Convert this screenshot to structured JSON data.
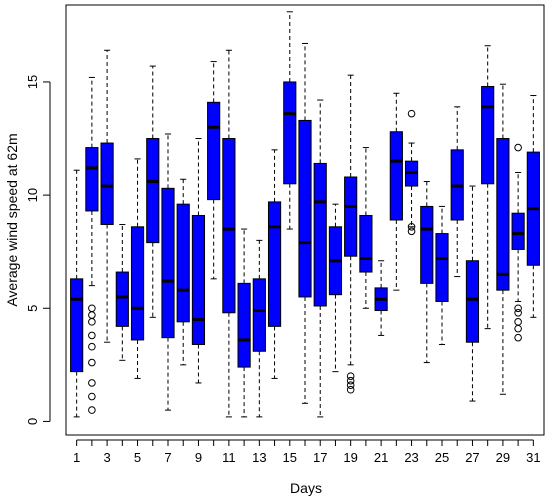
{
  "chart_data": {
    "type": "boxplot",
    "title": "",
    "xlabel": "Days",
    "ylabel": "Average wind speed at 62m",
    "ylim": [
      -0.6,
      18.4
    ],
    "yticks": [
      0,
      5,
      10,
      15
    ],
    "xtick_labels_shown": [
      "1",
      "3",
      "5",
      "7",
      "9",
      "11",
      "13",
      "15",
      "17",
      "19",
      "21",
      "23",
      "25",
      "27",
      "29",
      "31"
    ],
    "colors": {
      "box_fill": "#0000ff",
      "median": "#000000",
      "whisker": "#000000",
      "outlier": "#000000"
    },
    "categories": [
      "1",
      "2",
      "3",
      "4",
      "5",
      "6",
      "7",
      "8",
      "9",
      "10",
      "11",
      "12",
      "13",
      "14",
      "15",
      "16",
      "17",
      "18",
      "19",
      "20",
      "21",
      "22",
      "23",
      "24",
      "25",
      "26",
      "27",
      "28",
      "29",
      "30",
      "31"
    ],
    "boxes": [
      {
        "day": 1,
        "min": 0.2,
        "q1": 2.2,
        "median": 5.4,
        "q3": 6.3,
        "max": 11.1,
        "outliers": []
      },
      {
        "day": 2,
        "min": 6.0,
        "q1": 9.3,
        "median": 11.2,
        "q3": 12.1,
        "max": 15.2,
        "outliers": [
          0.5,
          1.1,
          1.7,
          2.6,
          3.3,
          3.8,
          4.4,
          4.7,
          5.0
        ]
      },
      {
        "day": 3,
        "min": 3.5,
        "q1": 8.7,
        "median": 10.4,
        "q3": 12.3,
        "max": 16.4,
        "outliers": []
      },
      {
        "day": 4,
        "min": 2.7,
        "q1": 4.2,
        "median": 5.5,
        "q3": 6.6,
        "max": 8.7,
        "outliers": []
      },
      {
        "day": 5,
        "min": 1.9,
        "q1": 3.6,
        "median": 5.0,
        "q3": 8.6,
        "max": 11.6,
        "outliers": []
      },
      {
        "day": 6,
        "min": 4.6,
        "q1": 7.9,
        "median": 10.6,
        "q3": 12.5,
        "max": 15.7,
        "outliers": []
      },
      {
        "day": 7,
        "min": 0.5,
        "q1": 3.7,
        "median": 6.2,
        "q3": 10.3,
        "max": 12.7,
        "outliers": []
      },
      {
        "day": 8,
        "min": 2.5,
        "q1": 4.4,
        "median": 5.8,
        "q3": 9.6,
        "max": 10.7,
        "outliers": []
      },
      {
        "day": 9,
        "min": 1.7,
        "q1": 3.4,
        "median": 4.5,
        "q3": 9.1,
        "max": 12.5,
        "outliers": []
      },
      {
        "day": 10,
        "min": 6.3,
        "q1": 9.8,
        "median": 13.0,
        "q3": 14.1,
        "max": 15.9,
        "outliers": []
      },
      {
        "day": 11,
        "min": 0.2,
        "q1": 4.8,
        "median": 8.5,
        "q3": 12.5,
        "max": 16.4,
        "outliers": []
      },
      {
        "day": 12,
        "min": 0.2,
        "q1": 2.4,
        "median": 3.6,
        "q3": 6.1,
        "max": 8.5,
        "outliers": []
      },
      {
        "day": 13,
        "min": 0.2,
        "q1": 3.1,
        "median": 4.9,
        "q3": 6.3,
        "max": 8.0,
        "outliers": []
      },
      {
        "day": 14,
        "min": 1.9,
        "q1": 4.2,
        "median": 8.6,
        "q3": 9.7,
        "max": 12.0,
        "outliers": []
      },
      {
        "day": 15,
        "min": 8.5,
        "q1": 10.5,
        "median": 13.6,
        "q3": 15.0,
        "max": 18.1,
        "outliers": []
      },
      {
        "day": 16,
        "min": 0.8,
        "q1": 5.5,
        "median": 7.9,
        "q3": 13.3,
        "max": 16.7,
        "outliers": []
      },
      {
        "day": 17,
        "min": 0.2,
        "q1": 5.1,
        "median": 9.7,
        "q3": 11.4,
        "max": 14.2,
        "outliers": []
      },
      {
        "day": 18,
        "min": 2.2,
        "q1": 5.6,
        "median": 7.1,
        "q3": 8.6,
        "max": 9.6,
        "outliers": []
      },
      {
        "day": 19,
        "min": 2.5,
        "q1": 7.3,
        "median": 9.5,
        "q3": 10.8,
        "max": 15.3,
        "outliers": [
          1.4,
          1.6,
          1.8,
          2.0
        ]
      },
      {
        "day": 20,
        "min": 5.0,
        "q1": 6.6,
        "median": 7.2,
        "q3": 9.1,
        "max": 12.1,
        "outliers": []
      },
      {
        "day": 21,
        "min": 3.8,
        "q1": 4.9,
        "median": 5.4,
        "q3": 5.9,
        "max": 7.1,
        "outliers": []
      },
      {
        "day": 22,
        "min": 5.8,
        "q1": 8.9,
        "median": 11.5,
        "q3": 12.8,
        "max": 14.5,
        "outliers": []
      },
      {
        "day": 23,
        "min": 8.6,
        "q1": 10.4,
        "median": 11.0,
        "q3": 11.5,
        "max": 12.3,
        "outliers": [
          8.4,
          8.6,
          13.6
        ]
      },
      {
        "day": 24,
        "min": 2.6,
        "q1": 6.1,
        "median": 8.5,
        "q3": 9.5,
        "max": 10.6,
        "outliers": []
      },
      {
        "day": 25,
        "min": 3.4,
        "q1": 5.3,
        "median": 7.2,
        "q3": 8.3,
        "max": 9.5,
        "outliers": []
      },
      {
        "day": 26,
        "min": 6.4,
        "q1": 8.9,
        "median": 10.4,
        "q3": 12.0,
        "max": 13.9,
        "outliers": []
      },
      {
        "day": 27,
        "min": 0.9,
        "q1": 3.5,
        "median": 5.4,
        "q3": 7.1,
        "max": 10.4,
        "outliers": []
      },
      {
        "day": 28,
        "min": 4.1,
        "q1": 10.5,
        "median": 13.9,
        "q3": 14.8,
        "max": 16.6,
        "outliers": []
      },
      {
        "day": 29,
        "min": 1.2,
        "q1": 5.8,
        "median": 6.5,
        "q3": 12.5,
        "max": 14.9,
        "outliers": []
      },
      {
        "day": 30,
        "min": 5.3,
        "q1": 7.6,
        "median": 8.3,
        "q3": 9.2,
        "max": 11.0,
        "outliers": [
          3.7,
          4.1,
          4.4,
          4.8,
          5.0,
          12.1
        ]
      },
      {
        "day": 31,
        "min": 4.6,
        "q1": 6.9,
        "median": 9.4,
        "q3": 11.9,
        "max": 14.4,
        "outliers": []
      }
    ]
  }
}
